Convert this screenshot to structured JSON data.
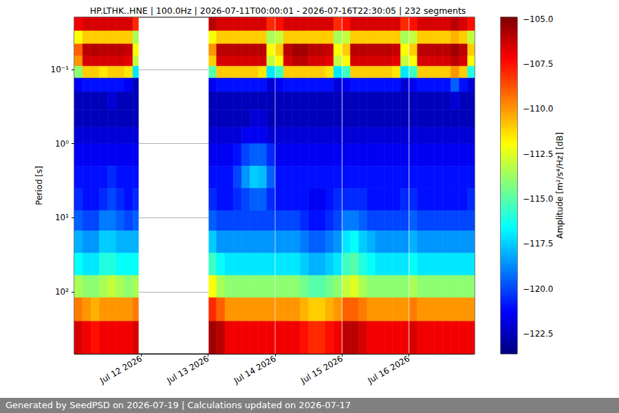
{
  "chart_data": {
    "type": "heatmap",
    "title": "HP.LTHK..HNE | 100.0Hz | 2026-07-11T00:00:01 - 2026-07-16T22:30:05 | 232 segments",
    "ylabel": "Period [s]",
    "footer": "Generated by SeedPSD on 2026-07-19 | Calculations updated on 2026-07-17",
    "log": "y",
    "grid": "y",
    "xlim": [
      "2026-07-11T00:00",
      "2026-07-16T23:30"
    ],
    "xticks": [
      {
        "value": "2026-07-12T00:00",
        "label": "Jul 12 2026"
      },
      {
        "value": "2026-07-13T00:00",
        "label": "Jul 13 2026"
      },
      {
        "value": "2026-07-14T00:00",
        "label": "Jul 14 2026"
      },
      {
        "value": "2026-07-15T00:00",
        "label": "Jul 15 2026"
      },
      {
        "value": "2026-07-16T00:00",
        "label": "Jul 16 2026"
      }
    ],
    "ylim": [
      0.0196,
      687
    ],
    "yticks": [
      {
        "value": 0.1,
        "label": "10⁻¹"
      },
      {
        "value": 1,
        "label": "10⁰"
      },
      {
        "value": 10,
        "label": "10¹"
      },
      {
        "value": 100,
        "label": "10²"
      }
    ],
    "x": [
      "2026-07-11T00:00",
      "2026-07-11T03:00",
      "2026-07-11T06:00",
      "2026-07-11T09:00",
      "2026-07-11T12:00",
      "2026-07-11T15:00",
      "2026-07-11T18:00",
      "2026-07-11T21:00",
      "2026-07-13T00:15",
      "2026-07-13T03:00",
      "2026-07-13T06:00",
      "2026-07-13T09:00",
      "2026-07-13T12:00",
      "2026-07-13T15:00",
      "2026-07-13T18:00",
      "2026-07-13T21:00",
      "2026-07-14T00:10",
      "2026-07-14T03:00",
      "2026-07-14T06:00",
      "2026-07-14T09:00",
      "2026-07-14T12:00",
      "2026-07-14T15:00",
      "2026-07-14T18:00",
      "2026-07-14T21:00",
      "2026-07-15T00:10",
      "2026-07-15T03:00",
      "2026-07-15T06:00",
      "2026-07-15T09:00",
      "2026-07-15T12:00",
      "2026-07-15T15:00",
      "2026-07-15T18:00",
      "2026-07-15T21:00",
      "2026-07-16T00:10",
      "2026-07-16T03:00",
      "2026-07-16T06:00",
      "2026-07-16T09:00",
      "2026-07-16T12:00",
      "2026-07-16T15:00",
      "2026-07-16T18:00",
      "2026-07-16T21:00"
    ],
    "x_end": [
      "2026-07-11T03:00",
      "2026-07-11T06:00",
      "2026-07-11T09:00",
      "2026-07-11T12:00",
      "2026-07-11T15:00",
      "2026-07-11T18:00",
      "2026-07-11T21:00",
      "2026-07-11T23:00",
      "2026-07-13T03:00",
      "2026-07-13T06:00",
      "2026-07-13T09:00",
      "2026-07-13T12:00",
      "2026-07-13T15:00",
      "2026-07-13T18:00",
      "2026-07-13T21:00",
      "2026-07-13T23:50",
      "2026-07-14T03:00",
      "2026-07-14T06:00",
      "2026-07-14T09:00",
      "2026-07-14T12:00",
      "2026-07-14T15:00",
      "2026-07-14T18:00",
      "2026-07-14T21:00",
      "2026-07-14T23:50",
      "2026-07-15T03:00",
      "2026-07-15T06:00",
      "2026-07-15T09:00",
      "2026-07-15T12:00",
      "2026-07-15T15:00",
      "2026-07-15T18:00",
      "2026-07-15T21:00",
      "2026-07-15T23:50",
      "2026-07-16T03:00",
      "2026-07-16T06:00",
      "2026-07-16T09:00",
      "2026-07-16T12:00",
      "2026-07-16T15:00",
      "2026-07-16T18:00",
      "2026-07-16T21:00",
      "2026-07-16T23:30"
    ],
    "y_edges": [
      0.0196,
      0.03,
      0.045,
      0.065,
      0.09,
      0.13,
      0.2,
      0.35,
      0.6,
      1,
      2,
      4,
      8,
      15,
      30,
      60,
      120,
      250,
      687
    ],
    "values": [
      [
        -107,
        -112,
        -109,
        -110,
        -114,
        -121.5,
        -122.5,
        -122.5,
        -122,
        -121.5,
        -121,
        -120.5,
        -119.5,
        -118,
        -116.5,
        -113.5,
        -109.5,
        -106.5
      ],
      [
        -106.5,
        -111,
        -106,
        -106.5,
        -111,
        -121,
        -122.5,
        -122.5,
        -122,
        -121.5,
        -121,
        -121,
        -120,
        -118.5,
        -117,
        -114,
        -110,
        -107
      ],
      [
        -106.5,
        -111,
        -105.8,
        -106.5,
        -111,
        -121,
        -122.5,
        -122.5,
        -122,
        -121.5,
        -121,
        -121,
        -120,
        -118.5,
        -117,
        -114,
        -110.5,
        -107.5
      ],
      [
        -106.5,
        -111,
        -106,
        -106.5,
        -111.5,
        -121,
        -122.5,
        -122.5,
        -122,
        -121.5,
        -121,
        -120.5,
        -119,
        -117.5,
        -116,
        -113.5,
        -110,
        -107
      ],
      [
        -106.5,
        -111,
        -106,
        -106.5,
        -111,
        -121,
        -122,
        -122.5,
        -122,
        -121.5,
        -120.5,
        -120,
        -119,
        -117.5,
        -116,
        -113,
        -110,
        -107
      ],
      [
        -106.5,
        -111,
        -106,
        -106.5,
        -111,
        -121,
        -122.5,
        -122.5,
        -122,
        -121.5,
        -121,
        -120.5,
        -119.5,
        -118,
        -116.5,
        -113.5,
        -110,
        -107
      ],
      [
        -106.5,
        -111,
        -106.2,
        -106.8,
        -111.5,
        -121.5,
        -122.5,
        -122.5,
        -122,
        -121.5,
        -121,
        -121,
        -120,
        -118,
        -116.5,
        -114,
        -110,
        -107
      ],
      [
        -108,
        -113.5,
        -112,
        -113,
        -117,
        -122.5,
        -122.5,
        -122.5,
        -122,
        -121.5,
        -121,
        -120.5,
        -119.5,
        -118,
        -116.5,
        -113.5,
        -109.5,
        -106.5
      ],
      [
        -106,
        -112,
        -110,
        -111,
        -115,
        -121.5,
        -122.5,
        -122.5,
        -122,
        -121.5,
        -121,
        -120.5,
        -119.5,
        -117.5,
        -115.5,
        -112,
        -108,
        -105.5
      ],
      [
        -106.5,
        -111,
        -106,
        -106.5,
        -111,
        -121,
        -122.5,
        -122.5,
        -122,
        -121.5,
        -121,
        -121,
        -120,
        -118.5,
        -116.5,
        -113.5,
        -109,
        -106
      ],
      [
        -106.5,
        -111,
        -106,
        -106.5,
        -111,
        -121,
        -122.5,
        -122.5,
        -122,
        -121.5,
        -121,
        -121,
        -120,
        -118.5,
        -117,
        -114,
        -110,
        -107
      ],
      [
        -106.5,
        -111,
        -106,
        -106.5,
        -111,
        -121,
        -122.5,
        -122.5,
        -122,
        -121,
        -120,
        -120.5,
        -120,
        -118.5,
        -117,
        -114,
        -110,
        -107
      ],
      [
        -106.5,
        -111,
        -106,
        -106.5,
        -111,
        -121,
        -122.5,
        -122.5,
        -121.5,
        -120,
        -118.5,
        -120,
        -120,
        -118.5,
        -117,
        -114,
        -110,
        -107
      ],
      [
        -106.5,
        -111,
        -106,
        -106.5,
        -111,
        -121,
        -122.5,
        -122,
        -121.5,
        -119.5,
        -117.5,
        -119.5,
        -120,
        -118.5,
        -117,
        -114,
        -110,
        -107
      ],
      [
        -106.5,
        -111,
        -106,
        -106.5,
        -111.5,
        -121,
        -122.5,
        -122,
        -121.5,
        -119.5,
        -117.8,
        -119.5,
        -120,
        -118.5,
        -117,
        -114,
        -110,
        -107
      ],
      [
        -108,
        -113.5,
        -112,
        -113,
        -117,
        -122,
        -122.5,
        -122.5,
        -122,
        -120.5,
        -119.5,
        -120.5,
        -120,
        -118.5,
        -117,
        -114,
        -110,
        -107
      ],
      [
        -107.5,
        -113,
        -111,
        -112,
        -115.5,
        -121.5,
        -122.5,
        -122.5,
        -122,
        -121.5,
        -121,
        -121,
        -120,
        -118.5,
        -117,
        -114,
        -110,
        -107
      ],
      [
        -106.5,
        -111,
        -106,
        -106.5,
        -111,
        -121,
        -122.5,
        -122.5,
        -122,
        -121.5,
        -121,
        -121,
        -120,
        -118.5,
        -117,
        -114,
        -110,
        -107
      ],
      [
        -106.5,
        -111,
        -105.5,
        -106,
        -111,
        -121,
        -122.5,
        -122.5,
        -122,
        -121.5,
        -121,
        -121,
        -120,
        -118.5,
        -117,
        -114,
        -110,
        -107
      ],
      [
        -106.5,
        -111,
        -105.5,
        -106,
        -111,
        -121,
        -122.5,
        -122.5,
        -122,
        -121.5,
        -121,
        -121,
        -120.5,
        -119,
        -117.5,
        -114.5,
        -110.5,
        -107.5
      ],
      [
        -106.5,
        -111,
        -106,
        -106.5,
        -111,
        -121,
        -122.5,
        -122.5,
        -122,
        -121.5,
        -121,
        -121.5,
        -121,
        -119.5,
        -118,
        -115,
        -111,
        -108
      ],
      [
        -106.5,
        -111,
        -106,
        -106.5,
        -111,
        -121,
        -122.5,
        -122.5,
        -122,
        -121.5,
        -121,
        -121.5,
        -121,
        -119.5,
        -118,
        -115,
        -111,
        -108
      ],
      [
        -106.5,
        -111,
        -106.2,
        -106.8,
        -111.5,
        -121,
        -122.5,
        -122.5,
        -122,
        -121.5,
        -121,
        -121,
        -120.5,
        -119,
        -117.5,
        -114.5,
        -110.5,
        -107.5
      ],
      [
        -108,
        -113.5,
        -112,
        -113,
        -117,
        -122,
        -122.5,
        -122.5,
        -122,
        -121.5,
        -121,
        -120.5,
        -120,
        -118.5,
        -117,
        -114,
        -110,
        -107
      ],
      [
        -107.5,
        -113,
        -111,
        -112,
        -115.5,
        -121.5,
        -122.5,
        -122.5,
        -122,
        -121.5,
        -121,
        -120.5,
        -119,
        -117,
        -115.5,
        -113,
        -109,
        -106
      ],
      [
        -106.5,
        -111,
        -106,
        -106.5,
        -111,
        -121,
        -122.5,
        -122.5,
        -122,
        -121.5,
        -121,
        -120.5,
        -119,
        -116.5,
        -115,
        -112.5,
        -109,
        -106
      ],
      [
        -106.5,
        -111,
        -106,
        -106.5,
        -111,
        -121,
        -122.5,
        -122.5,
        -122,
        -121.5,
        -121,
        -120.5,
        -119.5,
        -117.5,
        -116,
        -113.5,
        -109.5,
        -106.5
      ],
      [
        -106.5,
        -111,
        -106,
        -106.5,
        -111,
        -121,
        -122.5,
        -122.5,
        -122,
        -121.5,
        -121,
        -121,
        -120,
        -118,
        -116.5,
        -114,
        -110,
        -107
      ],
      [
        -106.5,
        -111,
        -106,
        -106.5,
        -111,
        -121,
        -122.5,
        -122.5,
        -122,
        -121.5,
        -121,
        -121,
        -120,
        -118.5,
        -117,
        -114,
        -110,
        -107
      ],
      [
        -106.5,
        -111,
        -106,
        -106.5,
        -111,
        -121,
        -122.5,
        -122.5,
        -122,
        -121.5,
        -121,
        -121,
        -120,
        -118.5,
        -117,
        -114,
        -110,
        -107
      ],
      [
        -106.5,
        -111,
        -106.2,
        -106.8,
        -111.5,
        -121,
        -122.5,
        -122.5,
        -122,
        -121.5,
        -121,
        -121,
        -120,
        -118.5,
        -117,
        -114,
        -110,
        -107
      ],
      [
        -108,
        -113.5,
        -112,
        -113,
        -117,
        -122,
        -122.5,
        -122.5,
        -122,
        -121.5,
        -121,
        -120.5,
        -120,
        -118.5,
        -117,
        -114,
        -110,
        -107
      ],
      [
        -107.5,
        -113,
        -111,
        -112,
        -115.5,
        -121.5,
        -122.5,
        -122.5,
        -122,
        -121.5,
        -121,
        -120.5,
        -119.5,
        -118,
        -116.5,
        -113.5,
        -109.5,
        -106.5
      ],
      [
        -106.5,
        -111,
        -106,
        -106.5,
        -111,
        -121,
        -122.5,
        -122.5,
        -122,
        -121.5,
        -121,
        -121,
        -120,
        -118.5,
        -117,
        -114,
        -110,
        -107
      ],
      [
        -106.5,
        -111,
        -106,
        -106.5,
        -111,
        -121,
        -122.5,
        -122.5,
        -122,
        -121.5,
        -121,
        -121,
        -120,
        -118.5,
        -117,
        -114,
        -110,
        -107
      ],
      [
        -106.5,
        -111,
        -106,
        -106.5,
        -111,
        -121,
        -122.5,
        -122.5,
        -122,
        -121.5,
        -121,
        -121,
        -120,
        -118.5,
        -117,
        -114,
        -110,
        -107
      ],
      [
        -106.5,
        -111,
        -106,
        -106.5,
        -111,
        -121,
        -122.5,
        -122.5,
        -122,
        -121.5,
        -121,
        -121,
        -120,
        -118.5,
        -117,
        -114,
        -110,
        -107
      ],
      [
        -106,
        -110.5,
        -105.5,
        -106,
        -110,
        -119.5,
        -122,
        -122.5,
        -122,
        -121.5,
        -121,
        -121,
        -120,
        -118.5,
        -117,
        -114,
        -110,
        -107
      ],
      [
        -106.5,
        -111,
        -106,
        -106.5,
        -111,
        -121,
        -122.5,
        -122.5,
        -122,
        -121.5,
        -121,
        -121,
        -120,
        -118.5,
        -117,
        -114,
        -110,
        -107
      ],
      [
        -107.5,
        -113,
        -111,
        -112,
        -116,
        -122,
        -122.5,
        -122.5,
        -122,
        -121.5,
        -121,
        -120.5,
        -120,
        -118.5,
        -117,
        -114,
        -110,
        -107
      ]
    ],
    "colorbar_label": "Amplitude [m²/s⁴/Hz] [dB]",
    "zlim": [
      -123.6,
      -104.9
    ],
    "zticks": [
      {
        "value": -122.5,
        "label": "−122.5"
      },
      {
        "value": -120,
        "label": "−120.0"
      },
      {
        "value": -117.5,
        "label": "−117.5"
      },
      {
        "value": -115,
        "label": "−115.0"
      },
      {
        "value": -112.5,
        "label": "−112.5"
      },
      {
        "value": -110,
        "label": "−110.0"
      },
      {
        "value": -107.5,
        "label": "−107.5"
      },
      {
        "value": -105,
        "label": "−105.0"
      }
    ]
  }
}
